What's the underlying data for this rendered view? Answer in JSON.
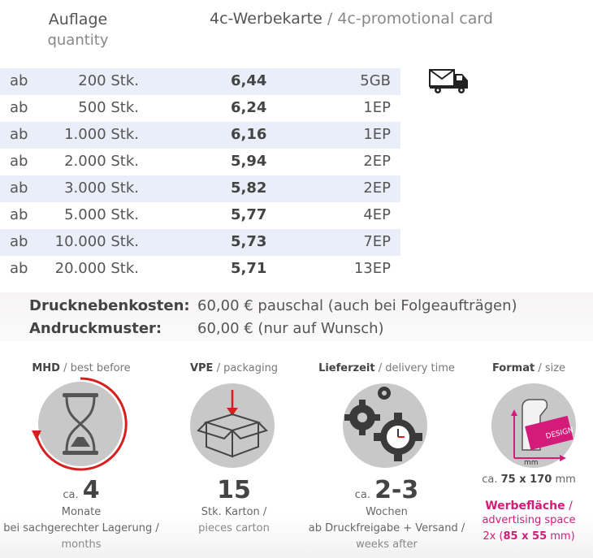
{
  "header": {
    "qty_de": "Auflage",
    "qty_en": "quantity",
    "product_de": "4c-Werbekarte",
    "product_sep": "/",
    "product_en": "4c-promotional card"
  },
  "rows": [
    {
      "ab": "ab",
      "qty": "200 Stk.",
      "price": "6,44",
      "delivery": "5GB"
    },
    {
      "ab": "ab",
      "qty": "500 Stk.",
      "price": "6,24",
      "delivery": "1EP"
    },
    {
      "ab": "ab",
      "qty": "1.000 Stk.",
      "price": "6,16",
      "delivery": "1EP"
    },
    {
      "ab": "ab",
      "qty": "2.000 Stk.",
      "price": "5,94",
      "delivery": "2EP"
    },
    {
      "ab": "ab",
      "qty": "3.000 Stk.",
      "price": "5,82",
      "delivery": "2EP"
    },
    {
      "ab": "ab",
      "qty": "5.000 Stk.",
      "price": "5,77",
      "delivery": "4EP"
    },
    {
      "ab": "ab",
      "qty": "10.000 Stk.",
      "price": "5,73",
      "delivery": "7EP"
    },
    {
      "ab": "ab",
      "qty": "20.000 Stk.",
      "price": "5,71",
      "delivery": "13EP"
    }
  ],
  "costs": {
    "setup_label": "Drucknebenkosten:",
    "setup_value": "60,00 € pauschal (auch bei Folgeaufträgen)",
    "proof_label": "Andruckmuster:",
    "proof_value": "60,00 € (nur auf Wunsch)"
  },
  "icons": {
    "mhd": {
      "title_de": "MHD",
      "title_en": "/ best before",
      "prefix": "ca.",
      "number": "4",
      "unit_de": "Monate",
      "line2": "bei sachgerechter Lagerung /",
      "line3": "months"
    },
    "vpe": {
      "title_de": "VPE",
      "title_en": "/ packaging",
      "number": "15",
      "unit_de": "Stk. Karton /",
      "unit_en": "pieces carton"
    },
    "delivery": {
      "title_de": "Lieferzeit",
      "title_en": "/ delivery time",
      "prefix": "ca.",
      "number": "2-3",
      "unit_de": "Wochen",
      "line2": "ab Druckfreigabe + Versand /",
      "line3": "weeks after"
    },
    "format": {
      "title_de": "Format",
      "title_en": "/ size",
      "design_label": "DESIGN",
      "mm_label": "mm",
      "size_prefix": "ca.",
      "size_value": "75 x 170",
      "size_unit": "mm",
      "area_de": "Werbefläche",
      "area_sep": "/",
      "area_en": "advertising space",
      "area_size_prefix": "2x (",
      "area_size": "85 x 55",
      "area_size_suffix": " mm)"
    }
  },
  "colors": {
    "accent_pink": "#d41b7a",
    "accent_red": "#d62020",
    "row_shade": "#e9eef8",
    "icon_gray": "#c8c8c8"
  }
}
